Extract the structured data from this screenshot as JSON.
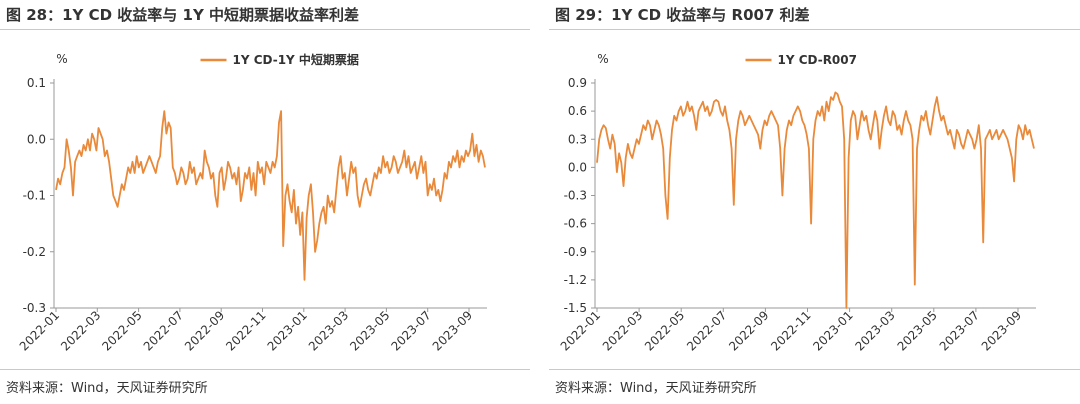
{
  "panels": [
    {
      "title": "图 28：1Y CD 收益率与 1Y 中短期票据收益率利差",
      "source": "资料来源：Wind，天风证券研究所"
    },
    {
      "title": "图 29：1Y CD 收益率与 R007 利差",
      "source": "资料来源：Wind，天风证券研究所"
    }
  ],
  "chart_data": [
    {
      "type": "line",
      "ylabel": "%",
      "ylim": [
        -0.3,
        0.1
      ],
      "yticks": [
        "0.1",
        "0.0",
        "-0.1",
        "-0.2",
        "-0.3"
      ],
      "ytick_values": [
        0.1,
        0.0,
        -0.1,
        -0.2,
        -0.3
      ],
      "xticks": [
        "2022-01",
        "2022-03",
        "2022-05",
        "2022-07",
        "2022-09",
        "2022-11",
        "2023-01",
        "2023-03",
        "2023-05",
        "2023-07",
        "2023-09"
      ],
      "grid": false,
      "legend_position": "top-center",
      "color": "#e9893a",
      "series": [
        {
          "name": "1Y CD-1Y 中短期票据",
          "x_range": [
            "2022-01",
            "2023-09"
          ],
          "values": [
            -0.09,
            -0.07,
            -0.08,
            -0.06,
            -0.05,
            0.0,
            -0.02,
            -0.05,
            -0.1,
            -0.04,
            -0.03,
            -0.02,
            -0.03,
            -0.01,
            -0.02,
            0.0,
            -0.02,
            0.01,
            0.0,
            -0.02,
            0.02,
            0.01,
            0.0,
            -0.03,
            -0.02,
            -0.04,
            -0.07,
            -0.1,
            -0.11,
            -0.12,
            -0.1,
            -0.08,
            -0.09,
            -0.07,
            -0.05,
            -0.06,
            -0.04,
            -0.06,
            -0.03,
            -0.05,
            -0.04,
            -0.06,
            -0.05,
            -0.04,
            -0.03,
            -0.04,
            -0.05,
            -0.06,
            -0.04,
            -0.03,
            0.02,
            0.05,
            0.01,
            0.03,
            0.02,
            -0.05,
            -0.06,
            -0.08,
            -0.07,
            -0.05,
            -0.06,
            -0.08,
            -0.07,
            -0.04,
            -0.06,
            -0.05,
            -0.08,
            -0.07,
            -0.06,
            -0.07,
            -0.02,
            -0.04,
            -0.05,
            -0.07,
            -0.06,
            -0.1,
            -0.12,
            -0.06,
            -0.05,
            -0.09,
            -0.07,
            -0.04,
            -0.05,
            -0.07,
            -0.06,
            -0.08,
            -0.05,
            -0.11,
            -0.09,
            -0.06,
            -0.07,
            -0.05,
            -0.09,
            -0.06,
            -0.1,
            -0.04,
            -0.06,
            -0.05,
            -0.08,
            -0.04,
            -0.05,
            -0.06,
            -0.04,
            -0.05,
            -0.03,
            0.03,
            0.05,
            -0.19,
            -0.1,
            -0.08,
            -0.11,
            -0.13,
            -0.09,
            -0.15,
            -0.12,
            -0.17,
            -0.13,
            -0.25,
            -0.14,
            -0.1,
            -0.08,
            -0.13,
            -0.2,
            -0.18,
            -0.15,
            -0.13,
            -0.12,
            -0.15,
            -0.1,
            -0.12,
            -0.11,
            -0.13,
            -0.09,
            -0.05,
            -0.03,
            -0.07,
            -0.06,
            -0.1,
            -0.07,
            -0.04,
            -0.06,
            -0.05,
            -0.1,
            -0.12,
            -0.1,
            -0.08,
            -0.07,
            -0.09,
            -0.1,
            -0.08,
            -0.06,
            -0.07,
            -0.05,
            -0.06,
            -0.03,
            -0.05,
            -0.04,
            -0.06,
            -0.05,
            -0.03,
            -0.04,
            -0.06,
            -0.05,
            -0.04,
            -0.02,
            -0.05,
            -0.03,
            -0.06,
            -0.05,
            -0.04,
            -0.07,
            -0.05,
            -0.03,
            -0.06,
            -0.04,
            -0.1,
            -0.08,
            -0.09,
            -0.07,
            -0.1,
            -0.09,
            -0.11,
            -0.09,
            -0.06,
            -0.07,
            -0.04,
            -0.05,
            -0.03,
            -0.04,
            -0.02,
            -0.05,
            -0.03,
            -0.04,
            -0.02,
            -0.03,
            -0.02,
            0.01,
            -0.03,
            -0.01,
            -0.04,
            -0.02,
            -0.03,
            -0.05
          ]
        }
      ]
    },
    {
      "type": "line",
      "ylabel": "%",
      "ylim": [
        -1.5,
        0.9
      ],
      "yticks": [
        "0.9",
        "0.6",
        "0.3",
        "0.0",
        "-0.3",
        "-0.6",
        "-0.9",
        "-1.2",
        "-1.5"
      ],
      "ytick_values": [
        0.9,
        0.6,
        0.3,
        0.0,
        -0.3,
        -0.6,
        -0.9,
        -1.2,
        -1.5
      ],
      "xticks": [
        "2022-01",
        "2022-03",
        "2022-05",
        "2022-07",
        "2022-09",
        "2022-11",
        "2023-01",
        "2023-03",
        "2023-05",
        "2023-07",
        "2023-09"
      ],
      "grid": false,
      "legend_position": "top-center",
      "color": "#e9893a",
      "series": [
        {
          "name": "1Y CD-R007",
          "x_range": [
            "2022-01",
            "2023-09"
          ],
          "values": [
            0.05,
            0.3,
            0.4,
            0.45,
            0.42,
            0.3,
            0.2,
            0.35,
            0.25,
            -0.05,
            0.15,
            0.05,
            -0.2,
            0.1,
            0.25,
            0.15,
            0.1,
            0.2,
            0.3,
            0.25,
            0.35,
            0.45,
            0.4,
            0.5,
            0.45,
            0.3,
            0.4,
            0.5,
            0.45,
            0.35,
            0.2,
            -0.3,
            -0.55,
            0.1,
            0.4,
            0.55,
            0.5,
            0.6,
            0.65,
            0.55,
            0.6,
            0.7,
            0.6,
            0.65,
            0.55,
            0.4,
            0.6,
            0.65,
            0.7,
            0.6,
            0.65,
            0.55,
            0.6,
            0.7,
            0.72,
            0.7,
            0.6,
            0.55,
            0.65,
            0.5,
            0.4,
            0.2,
            -0.4,
            0.3,
            0.5,
            0.6,
            0.55,
            0.45,
            0.5,
            0.55,
            0.5,
            0.45,
            0.4,
            0.35,
            0.2,
            0.4,
            0.5,
            0.45,
            0.55,
            0.6,
            0.55,
            0.5,
            0.45,
            0.2,
            -0.3,
            0.2,
            0.4,
            0.5,
            0.45,
            0.55,
            0.6,
            0.65,
            0.6,
            0.5,
            0.45,
            0.35,
            0.2,
            -0.6,
            0.3,
            0.5,
            0.6,
            0.55,
            0.65,
            0.5,
            0.7,
            0.6,
            0.75,
            0.72,
            0.8,
            0.78,
            0.7,
            0.65,
            0.3,
            -1.5,
            0.1,
            0.5,
            0.6,
            0.55,
            0.3,
            0.45,
            0.6,
            0.5,
            0.55,
            0.4,
            0.3,
            0.45,
            0.6,
            0.5,
            0.2,
            0.4,
            0.55,
            0.65,
            0.5,
            0.45,
            0.6,
            0.55,
            0.4,
            0.45,
            0.35,
            0.5,
            0.6,
            0.5,
            0.45,
            0.3,
            -1.25,
            0.2,
            0.4,
            0.55,
            0.5,
            0.6,
            0.45,
            0.35,
            0.5,
            0.65,
            0.75,
            0.6,
            0.5,
            0.55,
            0.45,
            0.35,
            0.4,
            0.3,
            0.2,
            0.4,
            0.35,
            0.25,
            0.2,
            0.3,
            0.4,
            0.35,
            0.3,
            0.2,
            0.3,
            0.45,
            0.2,
            -0.8,
            0.3,
            0.35,
            0.4,
            0.3,
            0.35,
            0.4,
            0.3,
            0.35,
            0.4,
            0.35,
            0.3,
            0.2,
            0.1,
            -0.15,
            0.3,
            0.45,
            0.4,
            0.3,
            0.45,
            0.35,
            0.4,
            0.3,
            0.2
          ]
        }
      ]
    }
  ]
}
